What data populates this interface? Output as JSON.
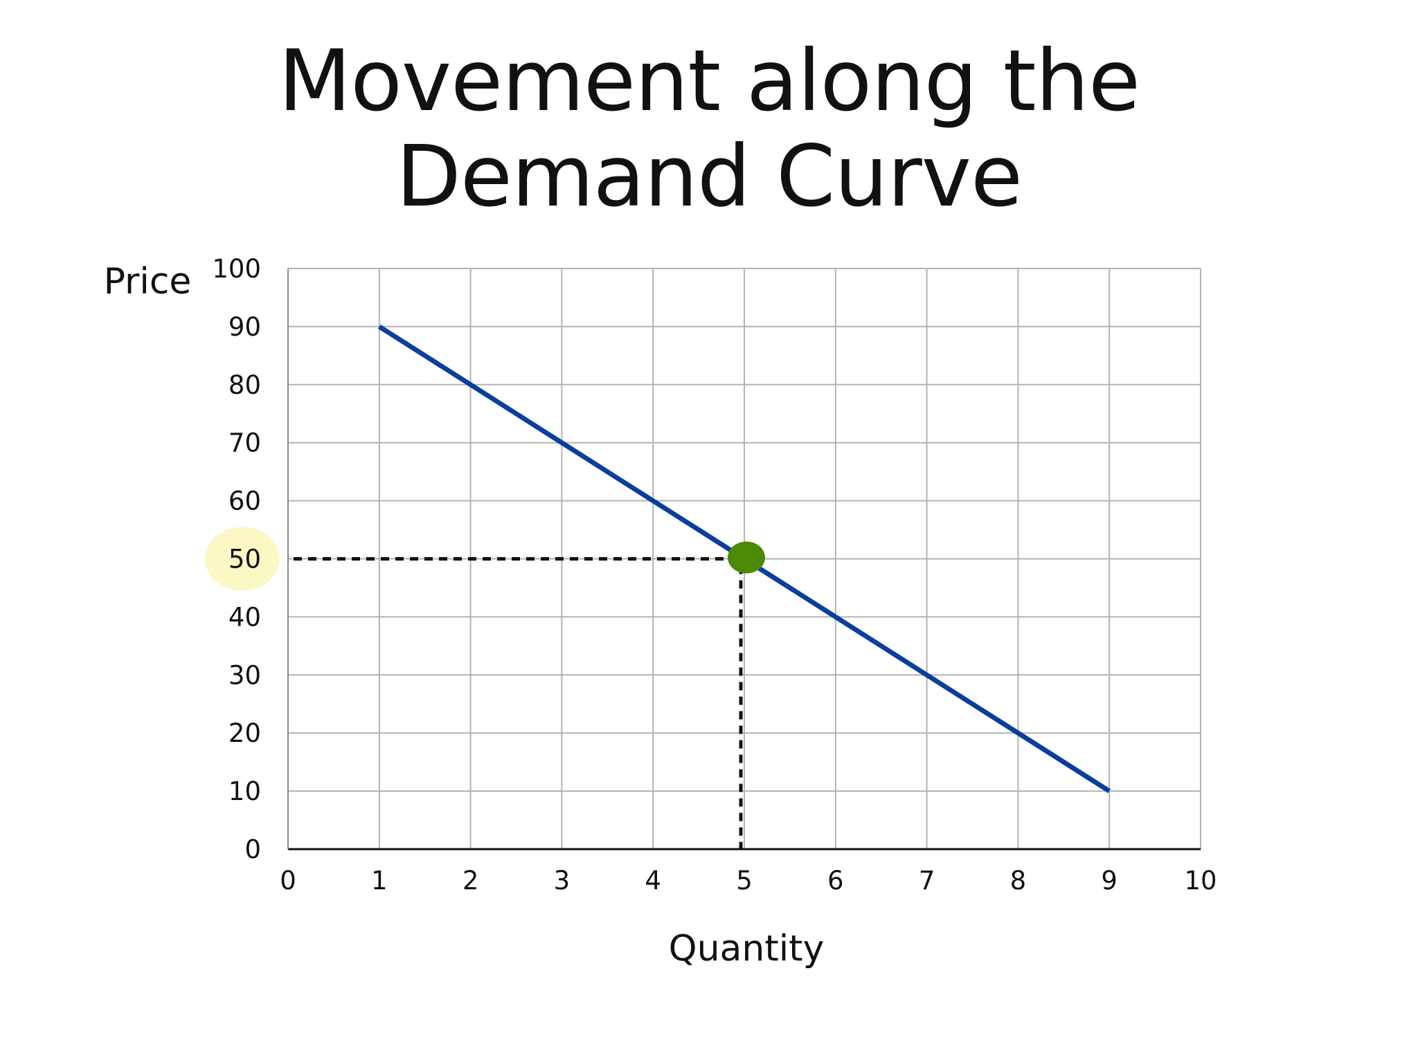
{
  "slide": {
    "title_lines": [
      "Movement along the",
      "Demand Curve"
    ]
  },
  "chart_data": {
    "type": "line",
    "title": "Movement along the Demand Curve",
    "xlabel": "Quantity",
    "ylabel": "Price",
    "xlim": [
      0,
      10
    ],
    "ylim": [
      0,
      100
    ],
    "x_ticks": [
      0,
      1,
      2,
      3,
      4,
      5,
      6,
      7,
      8,
      9,
      10
    ],
    "y_ticks": [
      0,
      10,
      20,
      30,
      40,
      50,
      60,
      70,
      80,
      90,
      100
    ],
    "grid": true,
    "series": [
      {
        "x": [
          1,
          9
        ],
        "y": [
          90,
          10
        ],
        "color": "#0a3f9e"
      }
    ],
    "highlight_point": {
      "x": 5,
      "y": 50,
      "color": "#4c8a06"
    },
    "guide_lines": {
      "x": 5,
      "y": 50,
      "style": "dashed",
      "color": "#111111"
    },
    "highlighted_tick": {
      "axis": "y",
      "value": 50,
      "color": "#fbf8c5"
    }
  }
}
